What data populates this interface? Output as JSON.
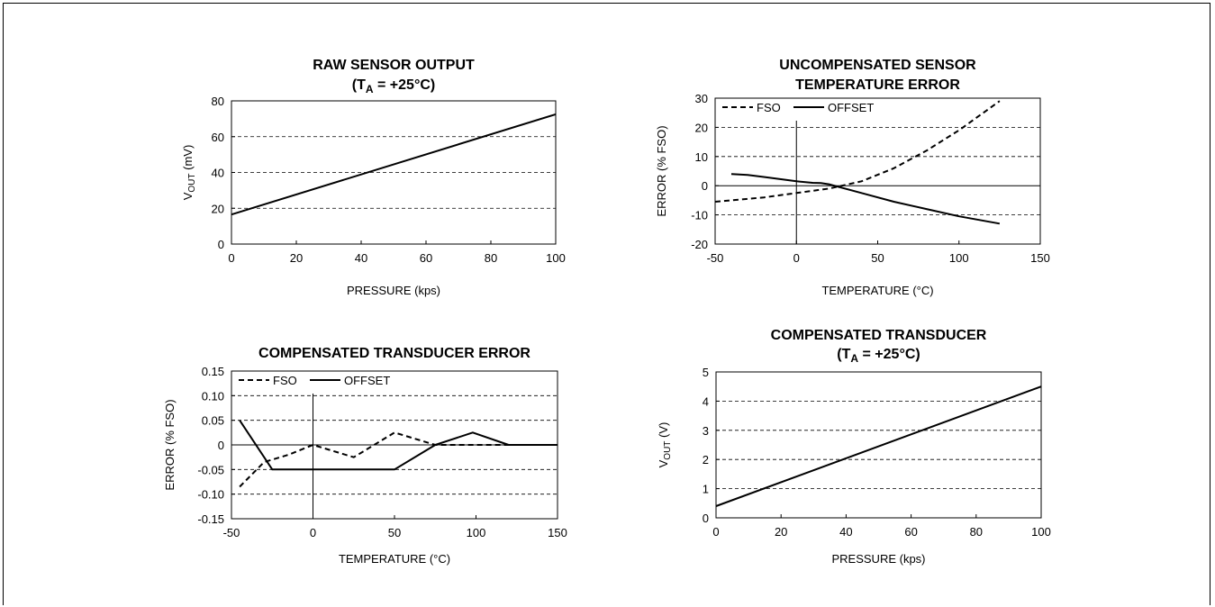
{
  "chart_data": [
    {
      "type": "line",
      "title": "RAW SENSOR OUTPUT",
      "subtitle": {
        "pre": "(T",
        "sub": "A",
        "post": " = +25°C)"
      },
      "xlabel": "PRESSURE (kps)",
      "ylabel": {
        "pre": "V",
        "sub": "OUT",
        "post": " (mV)"
      },
      "xlim": [
        0,
        100
      ],
      "ylim": [
        0,
        80
      ],
      "xticks": [
        0,
        20,
        40,
        60,
        80,
        100
      ],
      "yticks": [
        0,
        20,
        40,
        60,
        80
      ],
      "grid": "horizontal-dashed",
      "series": [
        {
          "style": "solid",
          "x": [
            0,
            100
          ],
          "y": [
            16.5,
            72.5
          ]
        }
      ]
    },
    {
      "type": "line",
      "title": "UNCOMPENSATED SENSOR",
      "title2": "TEMPERATURE ERROR",
      "xlabel": "TEMPERATURE (°C)",
      "ylabel": {
        "pre": "ERROR (% FSO)",
        "sub": "",
        "post": ""
      },
      "xlim": [
        -50,
        150
      ],
      "ylim": [
        -20,
        30
      ],
      "xticks": [
        -50,
        0,
        50,
        100,
        150
      ],
      "yticks": [
        -20,
        -10,
        0,
        10,
        20,
        30
      ],
      "grid": "horizontal-dashed",
      "legend": "top-left",
      "series": [
        {
          "name": "FSO",
          "style": "dashed",
          "x": [
            -50,
            -40,
            -20,
            0,
            20,
            40,
            60,
            80,
            100,
            125
          ],
          "y": [
            -5.5,
            -5,
            -4,
            -2.5,
            -1,
            1.5,
            6,
            12,
            19,
            29
          ]
        },
        {
          "name": "OFFSET",
          "style": "solid",
          "x": [
            -40,
            -30,
            -20,
            0,
            10,
            15,
            20,
            40,
            60,
            80,
            100,
            125
          ],
          "y": [
            4,
            3.7,
            3,
            1.5,
            1,
            0.9,
            0.5,
            -2.5,
            -5.5,
            -8,
            -10.5,
            -13
          ]
        }
      ]
    },
    {
      "type": "line",
      "title": "COMPENSATED TRANSDUCER ERROR",
      "xlabel": "TEMPERATURE (°C)",
      "ylabel": {
        "pre": "ERROR (% FSO)",
        "sub": "",
        "post": ""
      },
      "xlim": [
        -50,
        150
      ],
      "ylim": [
        -0.15,
        0.15
      ],
      "xticks": [
        -50,
        0,
        50,
        100,
        150
      ],
      "yticks": [
        -0.15,
        -0.1,
        -0.05,
        0,
        0.05,
        0.1,
        0.15
      ],
      "ytick_labels": [
        "-0.15",
        "-0.10",
        "-0.05",
        "0",
        "0.05",
        "0.10",
        "0.15"
      ],
      "grid": "horizontal-dashed",
      "legend": "top-left",
      "series": [
        {
          "name": "FSO",
          "style": "dashed",
          "x": [
            -45,
            -30,
            -15,
            0,
            25,
            50,
            75,
            100,
            125,
            150
          ],
          "y": [
            -0.085,
            -0.035,
            -0.02,
            0,
            -0.025,
            0.025,
            0,
            0,
            0,
            0
          ]
        },
        {
          "name": "OFFSET",
          "style": "solid",
          "x": [
            -45,
            -25,
            0,
            50,
            75,
            98,
            120,
            150
          ],
          "y": [
            0.05,
            -0.05,
            -0.05,
            -0.05,
            0,
            0.025,
            0,
            0
          ]
        }
      ]
    },
    {
      "type": "line",
      "title": "COMPENSATED TRANSDUCER",
      "subtitle": {
        "pre": "(T",
        "sub": "A",
        "post": " = +25°C)"
      },
      "xlabel": "PRESSURE (kps)",
      "ylabel": {
        "pre": "V",
        "sub": "OUT",
        "post": " (V)"
      },
      "xlim": [
        0,
        100
      ],
      "ylim": [
        0,
        5
      ],
      "xticks": [
        0,
        20,
        40,
        60,
        80,
        100
      ],
      "yticks": [
        0,
        1,
        2,
        3,
        4,
        5
      ],
      "grid": "horizontal-dashed",
      "series": [
        {
          "style": "solid",
          "x": [
            0,
            100
          ],
          "y": [
            0.4,
            4.5
          ]
        }
      ]
    }
  ]
}
